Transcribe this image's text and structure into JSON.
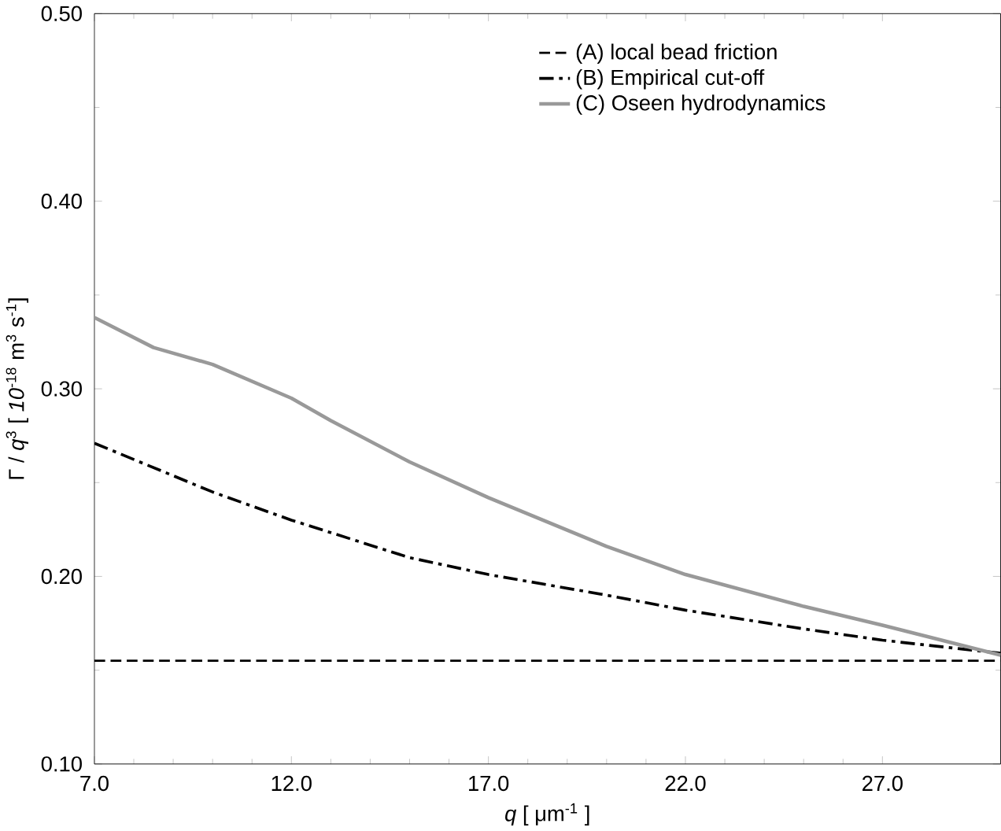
{
  "chart_data": {
    "type": "line",
    "xlabel": "*q* [ μm$^{-1}$ ]",
    "ylabel": "Γ / *q*$^{3}$  [ *10*$^{-18}$ m$^{3}$ s$^{-1}$]",
    "xlim": [
      7,
      30
    ],
    "ylim": [
      0.1,
      0.5
    ],
    "xticks": [
      {
        "value": 7,
        "label": "7.0"
      },
      {
        "value": 12,
        "label": "12.0"
      },
      {
        "value": 17,
        "label": "17.0"
      },
      {
        "value": 22,
        "label": "22.0"
      },
      {
        "value": 27,
        "label": "27.0"
      }
    ],
    "yticks": [
      {
        "value": 0.1,
        "label": "0.10"
      },
      {
        "value": 0.2,
        "label": "0.20"
      },
      {
        "value": 0.3,
        "label": "0.30"
      },
      {
        "value": 0.4,
        "label": "0.40"
      },
      {
        "value": 0.5,
        "label": "0.50"
      }
    ],
    "legend": "top",
    "grid": false,
    "marker": "none",
    "series": [
      {
        "name": "(A) local bead friction",
        "color": "#000000",
        "line_style": "dashed",
        "x": [
          7,
          30
        ],
        "values": [
          0.155,
          0.155
        ]
      },
      {
        "name": "(B) Empirical cut-off",
        "color": "#000000",
        "line_style": "dashdot",
        "x": [
          7,
          10,
          12,
          15,
          17,
          20,
          22,
          25,
          27,
          30
        ],
        "values": [
          0.271,
          0.245,
          0.23,
          0.21,
          0.201,
          0.19,
          0.182,
          0.172,
          0.166,
          0.159
        ]
      },
      {
        "name": "(C) Oseen hydrodynamics",
        "color": "#999999",
        "line_style": "solid",
        "x": [
          7,
          8.5,
          10,
          12,
          13,
          15,
          17,
          20,
          22,
          25,
          27,
          30
        ],
        "values": [
          0.338,
          0.322,
          0.313,
          0.295,
          0.283,
          0.261,
          0.242,
          0.216,
          0.201,
          0.184,
          0.174,
          0.158
        ]
      }
    ]
  }
}
